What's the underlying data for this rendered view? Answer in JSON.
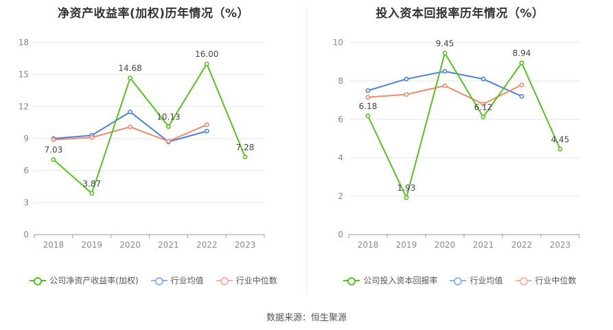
{
  "source_label": "数据来源：恒生聚源",
  "chart_data": [
    {
      "type": "line",
      "title": "净资产收益率(加权)历年情况（%）",
      "categories": [
        "2018",
        "2019",
        "2020",
        "2021",
        "2022",
        "2023"
      ],
      "ylim": [
        0,
        18
      ],
      "yticks": [
        "0",
        "3",
        "6",
        "9",
        "12",
        "15",
        "18"
      ],
      "ytick_values": [
        0,
        3,
        6,
        9,
        12,
        15,
        18
      ],
      "grid": true,
      "legend_position": "bottom",
      "series": [
        {
          "name": "公司净资产收益率(加权)",
          "values": [
            7.03,
            3.87,
            14.68,
            10.13,
            16.0,
            7.28
          ],
          "labels": [
            "7.03",
            "3.87",
            "14.68",
            "10.13",
            "16.00",
            "7.28"
          ],
          "color": "#52c41a"
        },
        {
          "name": "行业均值",
          "values": [
            9.0,
            9.3,
            11.5,
            8.7,
            9.7,
            null
          ],
          "color": "#4a7ee0"
        },
        {
          "name": "行业中位数",
          "values": [
            8.9,
            9.1,
            10.1,
            8.75,
            10.3,
            null
          ],
          "color": "#f0896a"
        }
      ]
    },
    {
      "type": "line",
      "title": "投入资本回报率历年情况（%）",
      "categories": [
        "2018",
        "2019",
        "2020",
        "2021",
        "2022",
        "2023"
      ],
      "ylim": [
        0,
        10
      ],
      "yticks": [
        "0",
        "2",
        "4",
        "6",
        "8",
        "10"
      ],
      "ytick_values": [
        0,
        2,
        4,
        6,
        8,
        10
      ],
      "grid": true,
      "legend_position": "bottom",
      "series": [
        {
          "name": "公司投入资本回报率",
          "values": [
            6.18,
            1.93,
            9.45,
            6.12,
            8.94,
            4.45
          ],
          "labels": [
            "6.18",
            "1.93",
            "9.45",
            "6.12",
            "8.94",
            "4.45"
          ],
          "color": "#52c41a"
        },
        {
          "name": "行业均值",
          "values": [
            7.5,
            8.1,
            8.5,
            8.1,
            7.2,
            null
          ],
          "color": "#4a7ee0"
        },
        {
          "name": "行业中位数",
          "values": [
            7.15,
            7.3,
            7.75,
            6.8,
            7.8,
            null
          ],
          "color": "#f0896a"
        }
      ]
    }
  ]
}
